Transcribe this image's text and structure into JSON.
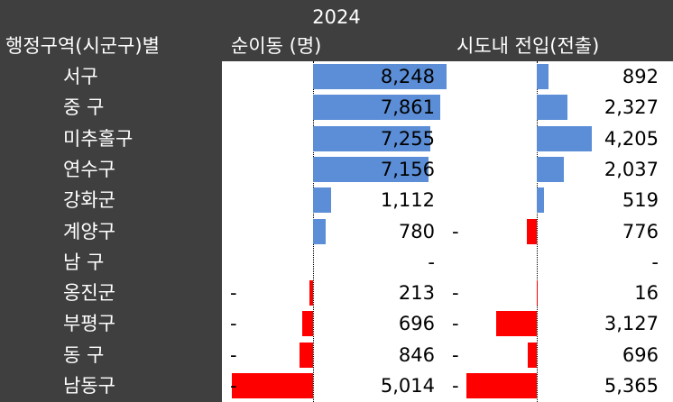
{
  "header": {
    "year": "2024",
    "region_col": "행정구역(시군구)별",
    "net_col": "순이동 (명)",
    "move_col": "시도내 전입(전출)"
  },
  "rows": [
    {
      "district": "서구",
      "net_sign": "",
      "net": "8,248",
      "move_sign": "",
      "move": "892"
    },
    {
      "district": "중 구",
      "net_sign": "",
      "net": "7,861",
      "move_sign": "",
      "move": "2,327"
    },
    {
      "district": "미추홀구",
      "net_sign": "",
      "net": "7,255",
      "move_sign": "",
      "move": "4,205"
    },
    {
      "district": "연수구",
      "net_sign": "",
      "net": "7,156",
      "move_sign": "",
      "move": "2,037"
    },
    {
      "district": "강화군",
      "net_sign": "",
      "net": "1,112",
      "move_sign": "",
      "move": "519"
    },
    {
      "district": "계양구",
      "net_sign": "",
      "net": "780",
      "move_sign": "-",
      "move": "776"
    },
    {
      "district": "남 구",
      "net_sign": "",
      "net": "-",
      "move_sign": "",
      "move": "-"
    },
    {
      "district": "옹진군",
      "net_sign": "-",
      "net": "213",
      "move_sign": "-",
      "move": "16"
    },
    {
      "district": "부평구",
      "net_sign": "-",
      "net": "696",
      "move_sign": "-",
      "move": "3,127"
    },
    {
      "district": "동 구",
      "net_sign": "-",
      "net": "846",
      "move_sign": "-",
      "move": "696"
    },
    {
      "district": "남동구",
      "net_sign": "-",
      "net": "5,014",
      "move_sign": "-",
      "move": "5,365"
    }
  ],
  "chart_data": {
    "type": "table",
    "title": "2024",
    "categories": [
      "서구",
      "중 구",
      "미추홀구",
      "연수구",
      "강화군",
      "계양구",
      "남 구",
      "옹진군",
      "부평구",
      "동 구",
      "남동구"
    ],
    "series": [
      {
        "name": "순이동 (명)",
        "values": [
          8248,
          7861,
          7255,
          7156,
          1112,
          780,
          0,
          -213,
          -696,
          -846,
          -5014
        ]
      },
      {
        "name": "시도내 전입(전출)",
        "values": [
          892,
          2327,
          4205,
          2037,
          519,
          -776,
          0,
          -16,
          -3127,
          -696,
          -5365
        ]
      }
    ],
    "bar_colors": {
      "positive": "#5b8ed6",
      "negative": "#ff0000"
    }
  }
}
